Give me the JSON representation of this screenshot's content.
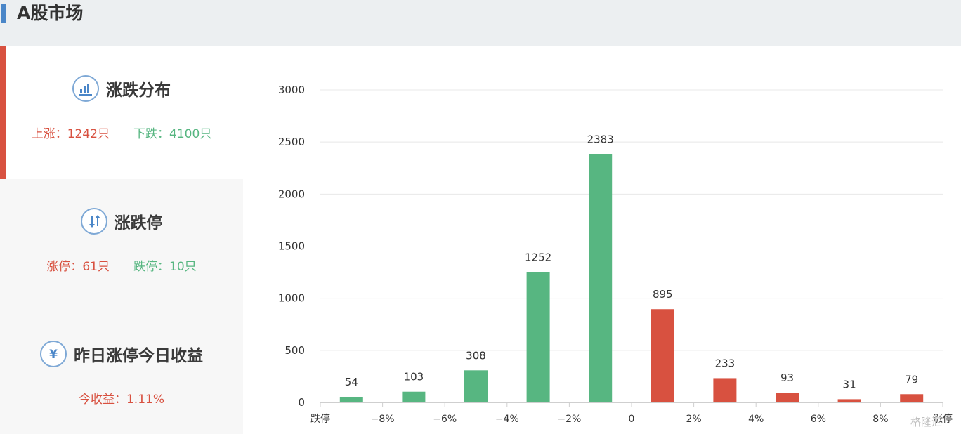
{
  "header": {
    "title": "A股市场"
  },
  "panels": [
    {
      "title": "涨跌分布",
      "icon": "bar-chart-icon",
      "stats": [
        {
          "label": "上涨：1242只",
          "color": "#d85140"
        },
        {
          "label": "下跌：4100只",
          "color": "#57b681"
        }
      ]
    },
    {
      "title": "涨跌停",
      "icon": "up-down-arrows-icon",
      "stats": [
        {
          "label": "涨停：61只",
          "color": "#d85140"
        },
        {
          "label": "跌停：10只",
          "color": "#57b681"
        }
      ]
    },
    {
      "title": "昨日涨停今日收益",
      "icon": "yen-icon",
      "stats": [
        {
          "label": "今收益：1.11%",
          "color": "#d85140"
        }
      ]
    }
  ],
  "colors": {
    "up": "#d85140",
    "down": "#57b681",
    "accent": "#4a86c8",
    "icon_border": "#7fa9d6"
  },
  "chart_data": {
    "type": "bar",
    "x_tick_labels": [
      "跌停",
      "−8%",
      "−6%",
      "−4%",
      "−2%",
      "0",
      "2%",
      "4%",
      "6%",
      "8%",
      "涨停"
    ],
    "bars": [
      {
        "value": 54,
        "direction": "down"
      },
      {
        "value": 103,
        "direction": "down"
      },
      {
        "value": 308,
        "direction": "down"
      },
      {
        "value": 1252,
        "direction": "down"
      },
      {
        "value": 2383,
        "direction": "down"
      },
      {
        "value": 895,
        "direction": "up"
      },
      {
        "value": 233,
        "direction": "up"
      },
      {
        "value": 93,
        "direction": "up"
      },
      {
        "value": 31,
        "direction": "up"
      },
      {
        "value": 79,
        "direction": "up"
      }
    ],
    "y_ticks": [
      0,
      500,
      1000,
      1500,
      2000,
      2500,
      3000
    ],
    "ylim": [
      0,
      3000
    ],
    "grid": true,
    "data_labels": true
  },
  "watermark": "格隆汇"
}
